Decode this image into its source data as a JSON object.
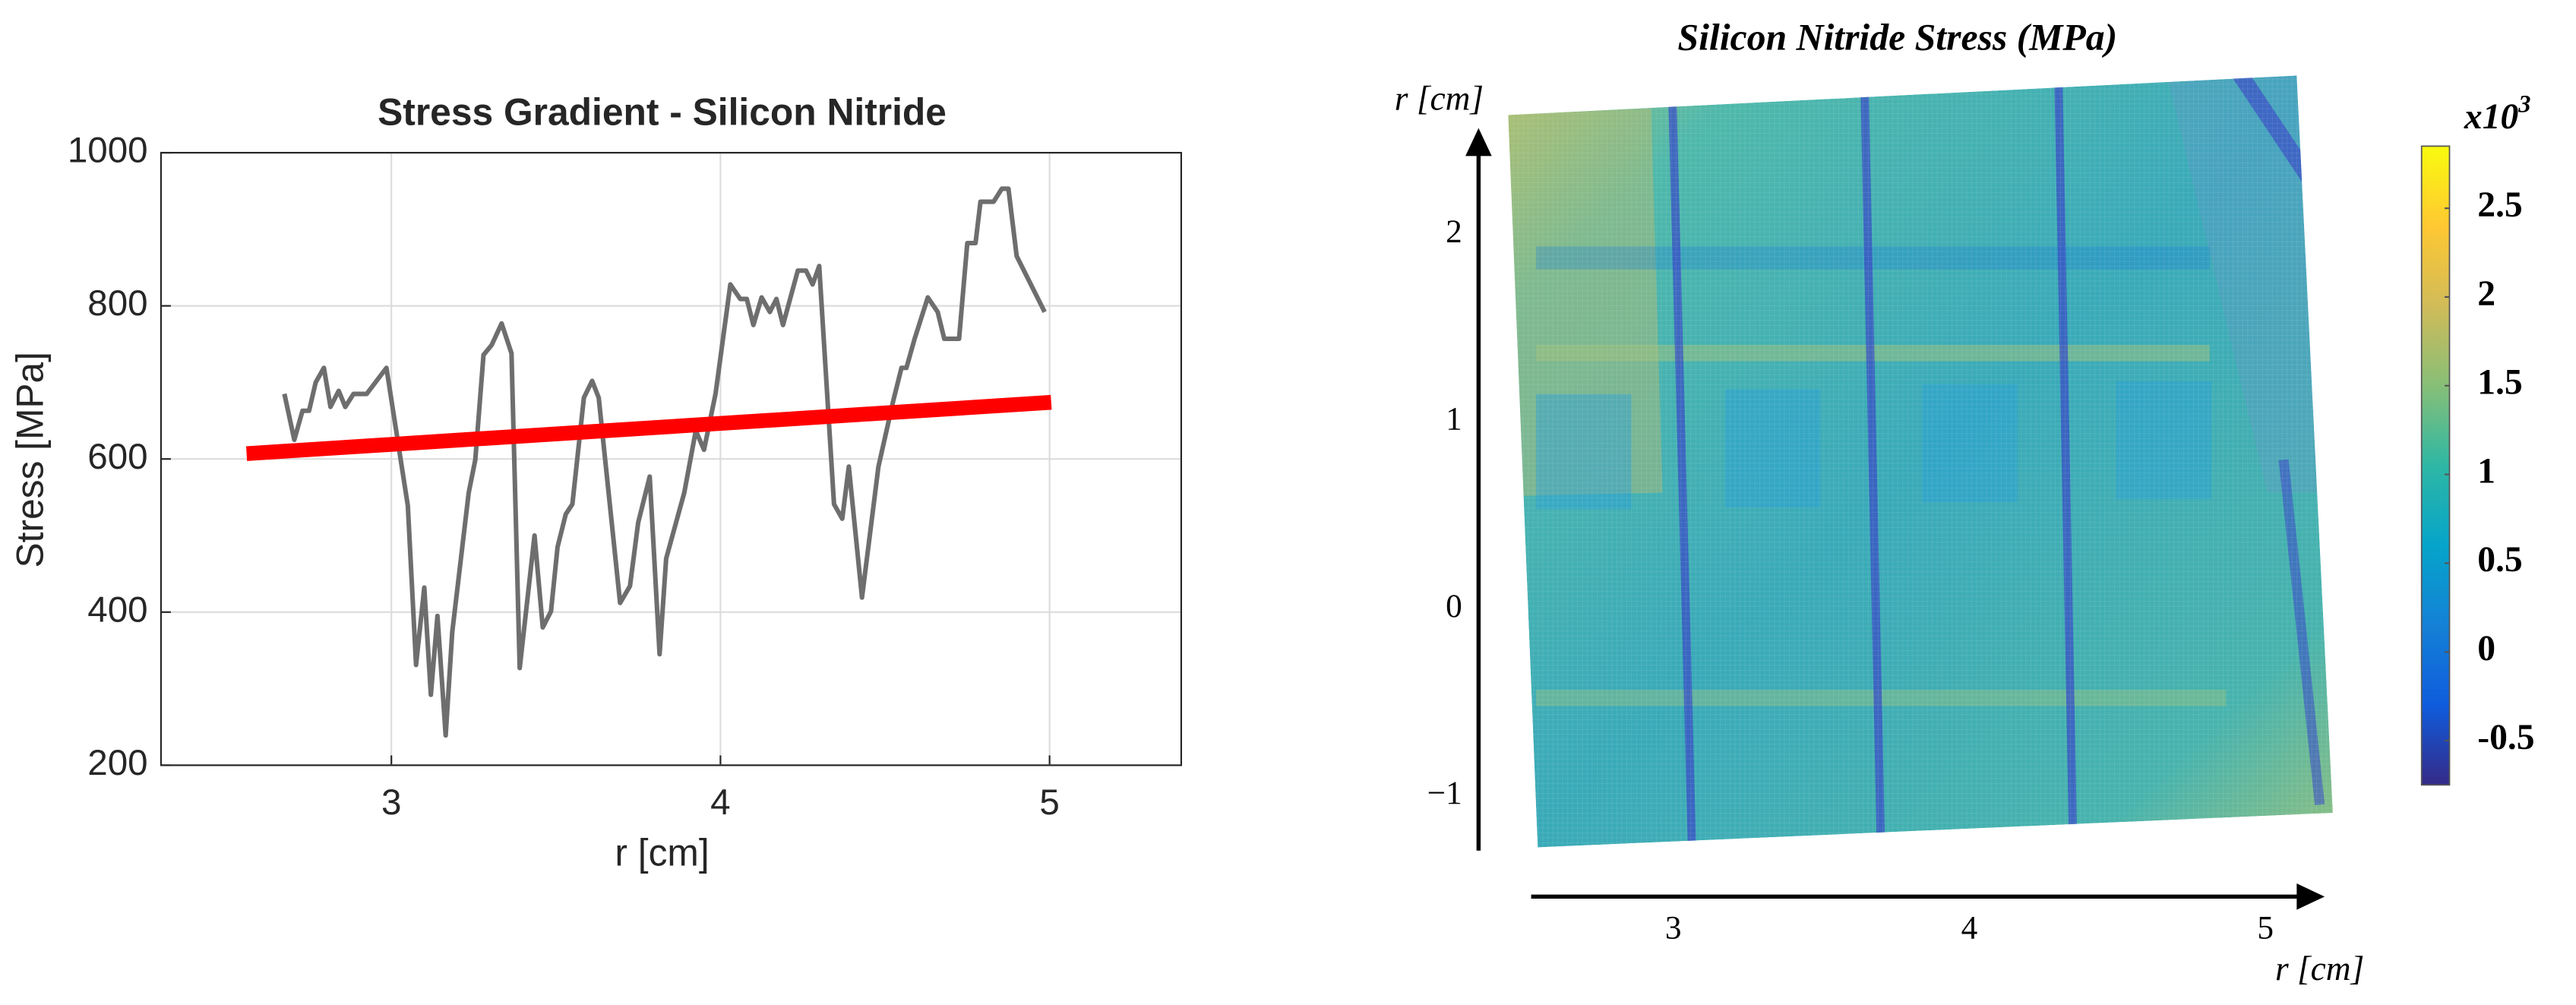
{
  "chart_data": [
    {
      "type": "line",
      "title": "Stress Gradient - Silicon Nitride",
      "xlabel": "r [cm]",
      "ylabel": "Stress [MPa]",
      "xlim": [
        2.3,
        5.4
      ],
      "ylim": [
        200,
        1000
      ],
      "xticks": [
        3,
        4,
        5
      ],
      "yticks": [
        200,
        400,
        600,
        800,
        1000
      ],
      "grid": true,
      "series": [
        {
          "color": "#6e6e6e",
          "x": [
            2.675,
            2.705,
            2.73,
            2.75,
            2.77,
            2.795,
            2.815,
            2.84,
            2.86,
            2.885,
            2.925,
            2.985,
            3.05,
            3.075,
            3.1,
            3.12,
            3.14,
            3.165,
            3.185,
            3.235,
            3.255,
            3.28,
            3.305,
            3.335,
            3.365,
            3.39,
            3.435,
            3.46,
            3.485,
            3.505,
            3.53,
            3.55,
            3.585,
            3.61,
            3.63,
            3.695,
            3.725,
            3.75,
            3.785,
            3.815,
            3.835,
            3.89,
            3.925,
            3.95,
            3.985,
            4.03,
            4.06,
            4.08,
            4.1,
            4.125,
            4.15,
            4.17,
            4.19,
            4.235,
            4.26,
            4.28,
            4.3,
            4.345,
            4.37,
            4.39,
            4.43,
            4.48,
            4.525,
            4.55,
            4.565,
            4.59,
            4.63,
            4.66,
            4.68,
            4.725,
            4.75,
            4.775,
            4.79,
            4.83,
            4.855,
            4.875,
            4.9,
            4.985
          ],
          "values": [
            685,
            625,
            663,
            663,
            700,
            719,
            668,
            689,
            668,
            685,
            685,
            719,
            539,
            331,
            432,
            292,
            395,
            239,
            374,
            556,
            599,
            736,
            749,
            777,
            738,
            327,
            500,
            380,
            401,
            485,
            528,
            541,
            680,
            702,
            680,
            412,
            434,
            517,
            577,
            345,
            470,
            556,
            637,
            612,
            685,
            828,
            809,
            809,
            775,
            811,
            792,
            809,
            775,
            846,
            846,
            828,
            852,
            541,
            522,
            590,
            419,
            590,
            676,
            719,
            719,
            757,
            811,
            792,
            757,
            757,
            882,
            882,
            936,
            936,
            953,
            953,
            865,
            792
          ]
        },
        {
          "color": "#ff0000",
          "x": [
            2.56,
            5.005
          ],
          "values": [
            607,
            674
          ]
        }
      ]
    },
    {
      "type": "heatmap",
      "title": "Silicon Nitride Stress (MPa)",
      "xlabel": "r [cm]",
      "ylabel": "r [cm]",
      "xlim": [
        2.52,
        5.2
      ],
      "ylim": [
        -1.29,
        2.57
      ],
      "xticks": [
        3,
        4,
        5
      ],
      "yticks": [
        {
          "value": -1,
          "label": "−1"
        },
        0,
        1,
        2
      ],
      "colormap": [
        "#352a87",
        "#0f5cdd",
        "#1481d6",
        "#06a4ca",
        "#2eb7a4",
        "#87bf77",
        "#d1bb59",
        "#fec832",
        "#f9fb0e"
      ],
      "colorbar": {
        "lim": [
          -0.75,
          2.85
        ],
        "ticks": [
          -0.5,
          0,
          0.5,
          1,
          1.5,
          2,
          2.5
        ],
        "label": "x10",
        "exponent": "3"
      }
    }
  ]
}
